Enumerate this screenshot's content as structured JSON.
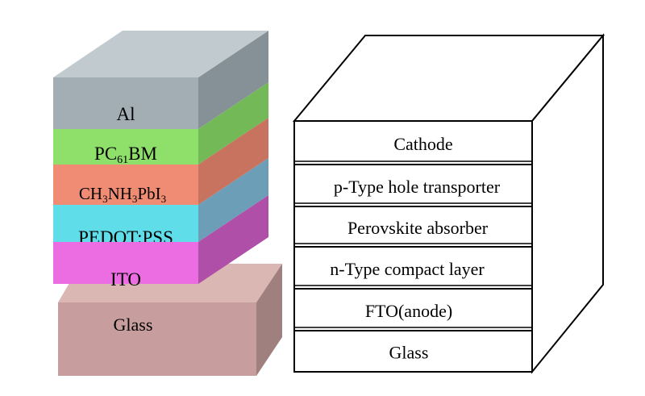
{
  "left_stack": {
    "layers": [
      {
        "label": "Al",
        "front": "#a2adb4",
        "side": "#869097"
      },
      {
        "label": "PC61BM",
        "label_main": "PC",
        "label_sub": "61",
        "label_tail": "BM",
        "front": "#8fe06b",
        "side": "#74b957"
      },
      {
        "label": "CH3NH3PbI3",
        "front": "#f08c73",
        "side": "#c7735f"
      },
      {
        "label": "PEDOT:PSS",
        "front": "#5fdde8",
        "side": "#6c9fb7"
      },
      {
        "label": "ITO",
        "front": "#ec6de2",
        "side": "#b04fa8"
      }
    ],
    "top_color": "#c0cacf",
    "substrate": {
      "label": "Glass",
      "front": "#c79d9d",
      "top": "#dbb7b4",
      "side": "#a07f7f"
    }
  },
  "right_box": {
    "layers": [
      {
        "label": "Cathode"
      },
      {
        "label": "p-Type hole transporter"
      },
      {
        "label": "Perovskite absorber"
      },
      {
        "label": "n-Type compact layer"
      },
      {
        "label": "FTO(anode)"
      },
      {
        "label": "Glass"
      }
    ]
  }
}
